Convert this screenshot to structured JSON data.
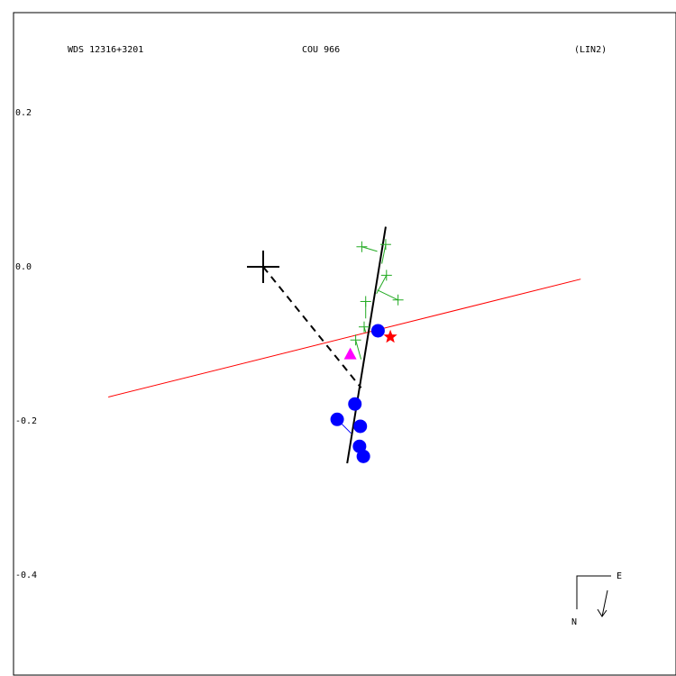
{
  "header": {
    "left": "WDS 12316+3201",
    "center": "COU 966",
    "right": "(LIN2)"
  },
  "compass": {
    "north": "N",
    "east": "E"
  },
  "chart_data": {
    "type": "scatter",
    "ylim": [
      -0.53,
      0.32
    ],
    "y_ticks": [
      {
        "value": 0.2,
        "label": "0.2"
      },
      {
        "value": 0.0,
        "label": "0.0"
      },
      {
        "value": -0.2,
        "label": "-0.2"
      },
      {
        "value": -0.4,
        "label": "-0.4"
      }
    ],
    "primary_star": {
      "x": 0.0,
      "y": 0.0
    },
    "linear_fit_line": {
      "x1": 0.159,
      "y1": 0.052,
      "x2": 0.109,
      "y2": -0.255
    },
    "reference_line": {
      "x1": -0.201,
      "y1": -0.169,
      "x2": 0.412,
      "y2": -0.016
    },
    "dashed_line": {
      "x1": 0.0,
      "y1": 0.0,
      "x2": 0.127,
      "y2": -0.157
    },
    "green_obs": [
      {
        "x": 0.128,
        "y": 0.026,
        "fx": 0.148,
        "fy": 0.02
      },
      {
        "x": 0.159,
        "y": 0.029,
        "fx": 0.154,
        "fy": 0.004
      },
      {
        "x": 0.16,
        "y": -0.011,
        "fx": 0.147,
        "fy": -0.035
      },
      {
        "x": 0.175,
        "y": -0.043,
        "fx": 0.148,
        "fy": -0.03
      },
      {
        "x": 0.133,
        "y": -0.045,
        "fx": 0.133,
        "fy": -0.067
      },
      {
        "x": 0.131,
        "y": -0.078,
        "fx": 0.133,
        "fy": -0.085
      },
      {
        "x": 0.12,
        "y": -0.095,
        "fx": 0.127,
        "fy": -0.12
      }
    ],
    "blue_obs": [
      {
        "x": 0.149,
        "y": -0.083,
        "fx": 0.146,
        "fy": -0.08
      },
      {
        "x": 0.119,
        "y": -0.178,
        "fx": 0.121,
        "fy": -0.18
      },
      {
        "x": 0.096,
        "y": -0.198,
        "fx": 0.114,
        "fy": -0.216
      },
      {
        "x": 0.126,
        "y": -0.207,
        "fx": 0.12,
        "fy": -0.205
      },
      {
        "x": 0.125,
        "y": -0.233,
        "fx": 0.118,
        "fy": -0.229
      },
      {
        "x": 0.13,
        "y": -0.246,
        "fx": 0.126,
        "fy": -0.243
      }
    ],
    "magenta_point": {
      "x": 0.113,
      "y": -0.113
    },
    "red_star_point": {
      "x": 0.165,
      "y": -0.091
    }
  },
  "colors": {
    "green": "#22aa22",
    "blue": "#0000ff",
    "red": "#ff0000",
    "magenta": "#ff00ff",
    "black": "#000000"
  }
}
